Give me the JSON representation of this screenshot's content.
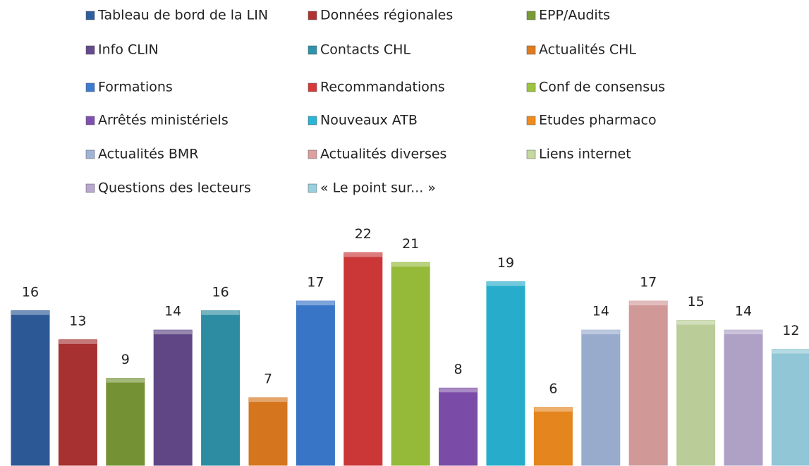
{
  "chart_data": {
    "type": "bar",
    "series": [
      {
        "name": "Tableau de bord de  la LIN",
        "color": "#2e5e9e",
        "values": [
          16
        ]
      },
      {
        "name": "Données régionales",
        "color": "#b03232",
        "values": [
          13
        ]
      },
      {
        "name": "EPP/Audits",
        "color": "#7a9a36",
        "values": [
          9
        ]
      },
      {
        "name": "Info CLIN",
        "color": "#654a8c",
        "values": [
          14
        ]
      },
      {
        "name": "Contacts CHL",
        "color": "#2f93ab",
        "values": [
          16
        ]
      },
      {
        "name": "Actualités CHL",
        "color": "#e07b20",
        "values": [
          7
        ]
      },
      {
        "name": "Formations",
        "color": "#3c7bd0",
        "values": [
          17
        ]
      },
      {
        "name": "Recommandations",
        "color": "#d63a3a",
        "values": [
          22
        ]
      },
      {
        "name": "Conf de consensus",
        "color": "#9dc43c",
        "values": [
          21
        ]
      },
      {
        "name": "Arrêtés ministériels",
        "color": "#8050b0",
        "values": [
          8
        ]
      },
      {
        "name": "Nouveaux ATB",
        "color": "#29b5d6",
        "values": [
          19
        ]
      },
      {
        "name": "Etudes pharmaco",
        "color": "#f08c1e",
        "values": [
          6
        ]
      },
      {
        "name": "Actualités BMR",
        "color": "#a0b4d8",
        "values": [
          14
        ]
      },
      {
        "name": "Actualités diverses",
        "color": "#dca0a0",
        "values": [
          17
        ]
      },
      {
        "name": "Liens internet",
        "color": "#c4d8a0",
        "values": [
          15
        ]
      },
      {
        "name": "Questions des lecteurs",
        "color": "#b8a8d0",
        "values": [
          14
        ]
      },
      {
        "name": "« Le point sur... »",
        "color": "#98d0e0",
        "values": [
          12
        ]
      }
    ]
  }
}
